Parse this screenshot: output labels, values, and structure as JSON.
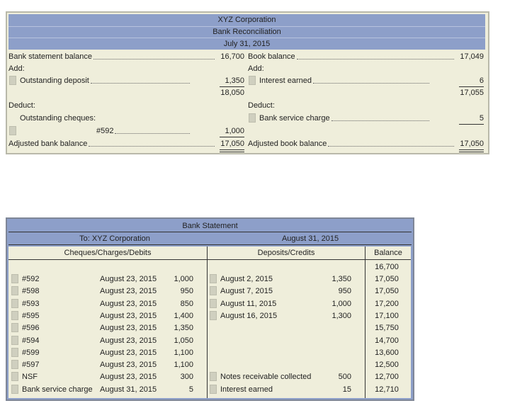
{
  "reconciliation": {
    "title": "XYZ Corporation",
    "subtitle": "Bank Reconciliation",
    "date": "July 31, 2015",
    "bank": {
      "balance_label": "Bank statement balance",
      "balance": "16,700",
      "add_label": "Add:",
      "deposit_label": "Outstanding deposit",
      "deposit": "1,350",
      "subtotal": "18,050",
      "deduct_label": "Deduct:",
      "cheques_label": "Outstanding cheques:",
      "cheque_label": "#592",
      "cheque": "1,000",
      "adjusted_label": "Adjusted bank balance",
      "adjusted": "17,050"
    },
    "book": {
      "balance_label": "Book balance",
      "balance": "17,049",
      "add_label": "Add:",
      "interest_label": "Interest earned",
      "interest": "6",
      "subtotal": "17,055",
      "deduct_label": "Deduct:",
      "charge_label": "Bank service charge",
      "charge": "5",
      "adjusted_label": "Adjusted book balance",
      "adjusted": "17,050"
    }
  },
  "statement": {
    "title": "Bank Statement",
    "to": "To: XYZ Corporation",
    "date": "August 31, 2015",
    "headers": [
      "Cheques/Charges/Debits",
      "Deposits/Credits",
      "Balance"
    ],
    "opening_balance": "16,700",
    "rows": [
      {
        "debit": "#592",
        "debit_date": "August 23, 2015",
        "debit_amount": "1,000",
        "credit": "August 2, 2015",
        "credit_amount": "1,350",
        "balance": "17,050"
      },
      {
        "debit": "#598",
        "debit_date": "August 23, 2015",
        "debit_amount": "950",
        "credit": "August 7, 2015",
        "credit_amount": "950",
        "balance": "17,050"
      },
      {
        "debit": "#593",
        "debit_date": "August 23, 2015",
        "debit_amount": "850",
        "credit": "August 11, 2015",
        "credit_amount": "1,000",
        "balance": "17,200"
      },
      {
        "debit": "#595",
        "debit_date": "August 23, 2015",
        "debit_amount": "1,400",
        "credit": "August 16, 2015",
        "credit_amount": "1,300",
        "balance": "17,100"
      },
      {
        "debit": "#596",
        "debit_date": "August 23, 2015",
        "debit_amount": "1,350",
        "credit": null,
        "credit_amount": null,
        "balance": "15,750"
      },
      {
        "debit": "#594",
        "debit_date": "August 23, 2015",
        "debit_amount": "1,050",
        "credit": null,
        "credit_amount": null,
        "balance": "14,700"
      },
      {
        "debit": "#599",
        "debit_date": "August 23, 2015",
        "debit_amount": "1,100",
        "credit": null,
        "credit_amount": null,
        "balance": "13,600"
      },
      {
        "debit": "#597",
        "debit_date": "August 23, 2015",
        "debit_amount": "1,100",
        "credit": null,
        "credit_amount": null,
        "balance": "12,500"
      },
      {
        "debit": "NSF",
        "debit_date": "August 23, 2015",
        "debit_amount": "300",
        "credit": "Notes receivable collected",
        "credit_amount": "500",
        "balance": "12,700"
      },
      {
        "debit": "Bank service charge",
        "debit_date": "August 31, 2015",
        "debit_amount": "5",
        "credit": "Interest earned",
        "credit_amount": "15",
        "balance": "12,710"
      }
    ]
  }
}
